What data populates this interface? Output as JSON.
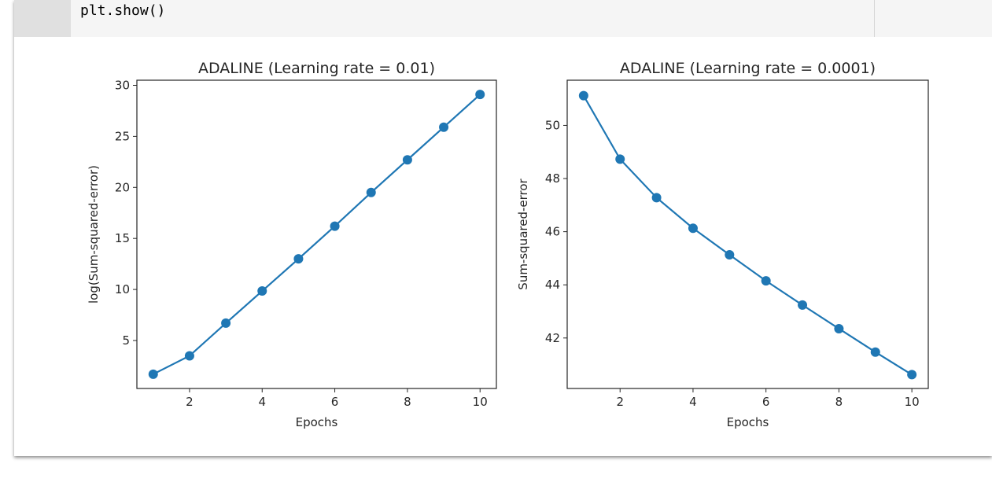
{
  "notebook": {
    "code_cell": {
      "line": "plt.show()"
    }
  },
  "colors": {
    "series": "#1f77b4",
    "axes": "#262626",
    "code_bg": "#f5f5f5",
    "gutter_bg": "#e0e0e0"
  },
  "chart_data": [
    {
      "type": "line",
      "title": "ADALINE (Learning rate = 0.01)",
      "xlabel": "Epochs",
      "ylabel": "log(Sum-squared-error)",
      "x": [
        1,
        2,
        3,
        4,
        5,
        6,
        7,
        8,
        9,
        10
      ],
      "series": [
        {
          "name": "log(SSE)",
          "values": [
            1.7,
            3.5,
            6.7,
            9.85,
            13.0,
            16.2,
            19.5,
            22.7,
            25.9,
            29.1
          ],
          "marker": "o"
        }
      ],
      "xticks": [
        2,
        4,
        6,
        8,
        10
      ],
      "yticks": [
        5,
        10,
        15,
        20,
        25,
        30
      ],
      "xlim": [
        0.55,
        10.45
      ],
      "ylim": [
        0.3,
        30.5
      ],
      "grid": false
    },
    {
      "type": "line",
      "title": "ADALINE (Learning rate = 0.0001)",
      "xlabel": "Epochs",
      "ylabel": "Sum-squared-error",
      "x": [
        1,
        2,
        3,
        4,
        5,
        6,
        7,
        8,
        9,
        10
      ],
      "series": [
        {
          "name": "SSE",
          "values": [
            51.12,
            48.73,
            47.28,
            46.13,
            45.13,
            44.15,
            43.24,
            42.35,
            41.47,
            40.62
          ],
          "marker": "o"
        }
      ],
      "xticks": [
        2,
        4,
        6,
        8,
        10
      ],
      "yticks": [
        42,
        44,
        46,
        48,
        50
      ],
      "xlim": [
        0.55,
        10.45
      ],
      "ylim": [
        40.1,
        51.7
      ],
      "grid": false
    }
  ]
}
